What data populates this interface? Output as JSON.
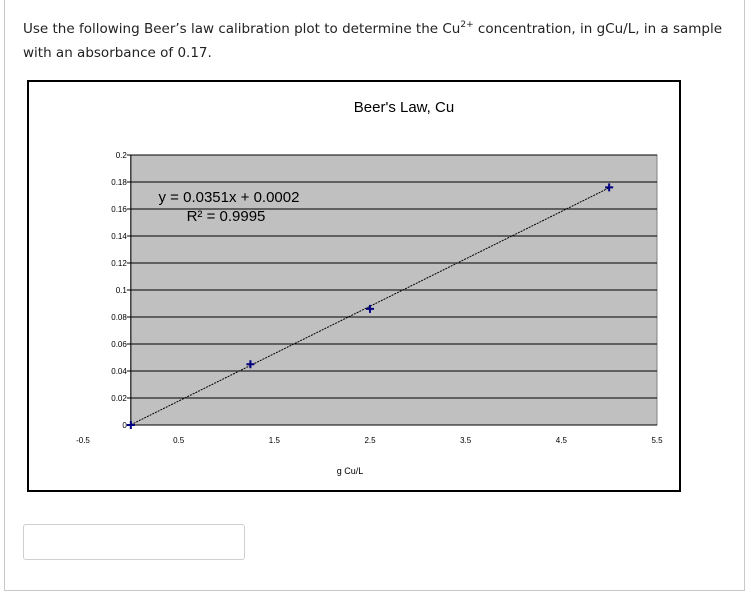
{
  "question": {
    "text_before": "Use the following Beer’s law calibration plot to determine the Cu",
    "superscript": "2+",
    "text_after": " concentration, in gCu/L,  in a sample with an absorbance of 0.17."
  },
  "answer": {
    "value": "",
    "placeholder": ""
  },
  "chart_data": {
    "type": "scatter",
    "title": "Beer's Law, Cu",
    "xlabel": "g Cu/L",
    "ylabel": "",
    "x_ticks": [
      "-0.5",
      "0.5",
      "1.5",
      "2.5",
      "3.5",
      "4.5",
      "5.5"
    ],
    "y_ticks": [
      "0",
      "0.02",
      "0.04",
      "0.06",
      "0.08",
      "0.1",
      "0.12",
      "0.14",
      "0.16",
      "0.18",
      "0.2"
    ],
    "xlim": [
      -0.5,
      5.5
    ],
    "ylim": [
      0,
      0.2
    ],
    "points": [
      {
        "x": 0,
        "y": 0
      },
      {
        "x": 1.25,
        "y": 0.045
      },
      {
        "x": 2.5,
        "y": 0.086
      },
      {
        "x": 5.0,
        "y": 0.176
      }
    ],
    "trendline": {
      "slope": 0.0351,
      "intercept": 0.0002
    },
    "equation": "y = 0.0351x + 0.0002",
    "r_squared": "R² = 0.9995",
    "grid": true,
    "colors": {
      "plot_bg": "#c0c0c0",
      "marker": "#000080",
      "line": "#000000",
      "grid": "#000000"
    }
  }
}
